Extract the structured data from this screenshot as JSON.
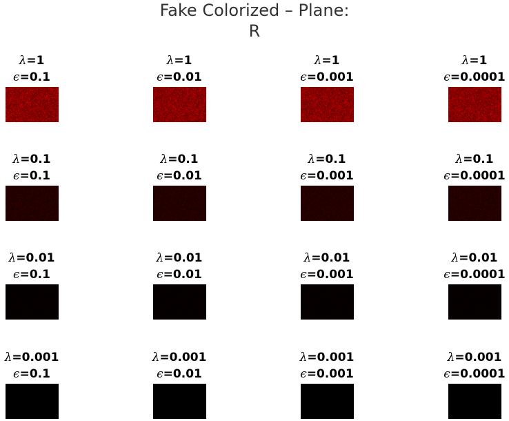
{
  "title_line1": "Fake Colorized – Plane:",
  "title_line2": "R",
  "rows": [
    {
      "lambda": "1",
      "brightness": 1.0,
      "cells": [
        {
          "eps": "0.1"
        },
        {
          "eps": "0.01"
        },
        {
          "eps": "0.001"
        },
        {
          "eps": "0.0001"
        }
      ]
    },
    {
      "lambda": "0.1",
      "brightness": 0.3,
      "cells": [
        {
          "eps": "0.1"
        },
        {
          "eps": "0.01"
        },
        {
          "eps": "0.001"
        },
        {
          "eps": "0.0001"
        }
      ]
    },
    {
      "lambda": "0.01",
      "brightness": 0.05,
      "cells": [
        {
          "eps": "0.1"
        },
        {
          "eps": "0.01"
        },
        {
          "eps": "0.001"
        },
        {
          "eps": "0.0001"
        }
      ]
    },
    {
      "lambda": "0.001",
      "brightness": 0.0,
      "cells": [
        {
          "eps": "0.1"
        },
        {
          "eps": "0.01"
        },
        {
          "eps": "0.001"
        },
        {
          "eps": "0.0001"
        }
      ]
    }
  ],
  "lambda_symbol": "λ",
  "epsilon_symbol": "ϵ",
  "equals": "=",
  "tile_color": "#b00000"
}
